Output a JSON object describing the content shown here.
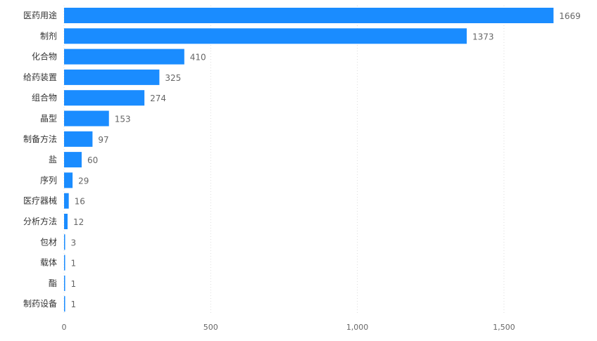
{
  "chart_data": {
    "type": "bar",
    "orientation": "horizontal",
    "categories": [
      "医药用途",
      "制剂",
      "化合物",
      "给药装置",
      "组合物",
      "晶型",
      "制备方法",
      "盐",
      "序列",
      "医疗器械",
      "分析方法",
      "包材",
      "载体",
      "酯",
      "制药设备"
    ],
    "values": [
      1669,
      1373,
      410,
      325,
      274,
      153,
      97,
      60,
      29,
      16,
      12,
      3,
      1,
      1,
      1
    ],
    "data_labels": [
      "1669",
      "1373",
      "410",
      "325",
      "274",
      "153",
      "97",
      "60",
      "29",
      "16",
      "12",
      "3",
      "1",
      "1",
      "1"
    ],
    "x_ticks": [
      0,
      500,
      1000,
      1500
    ],
    "x_tick_labels": [
      "0",
      "500",
      "1,000",
      "1,500"
    ],
    "xlim": [
      0,
      1750
    ],
    "bar_color": "#1a8cff",
    "grid": "vertical dotted",
    "title": "",
    "xlabel": "",
    "ylabel": ""
  }
}
